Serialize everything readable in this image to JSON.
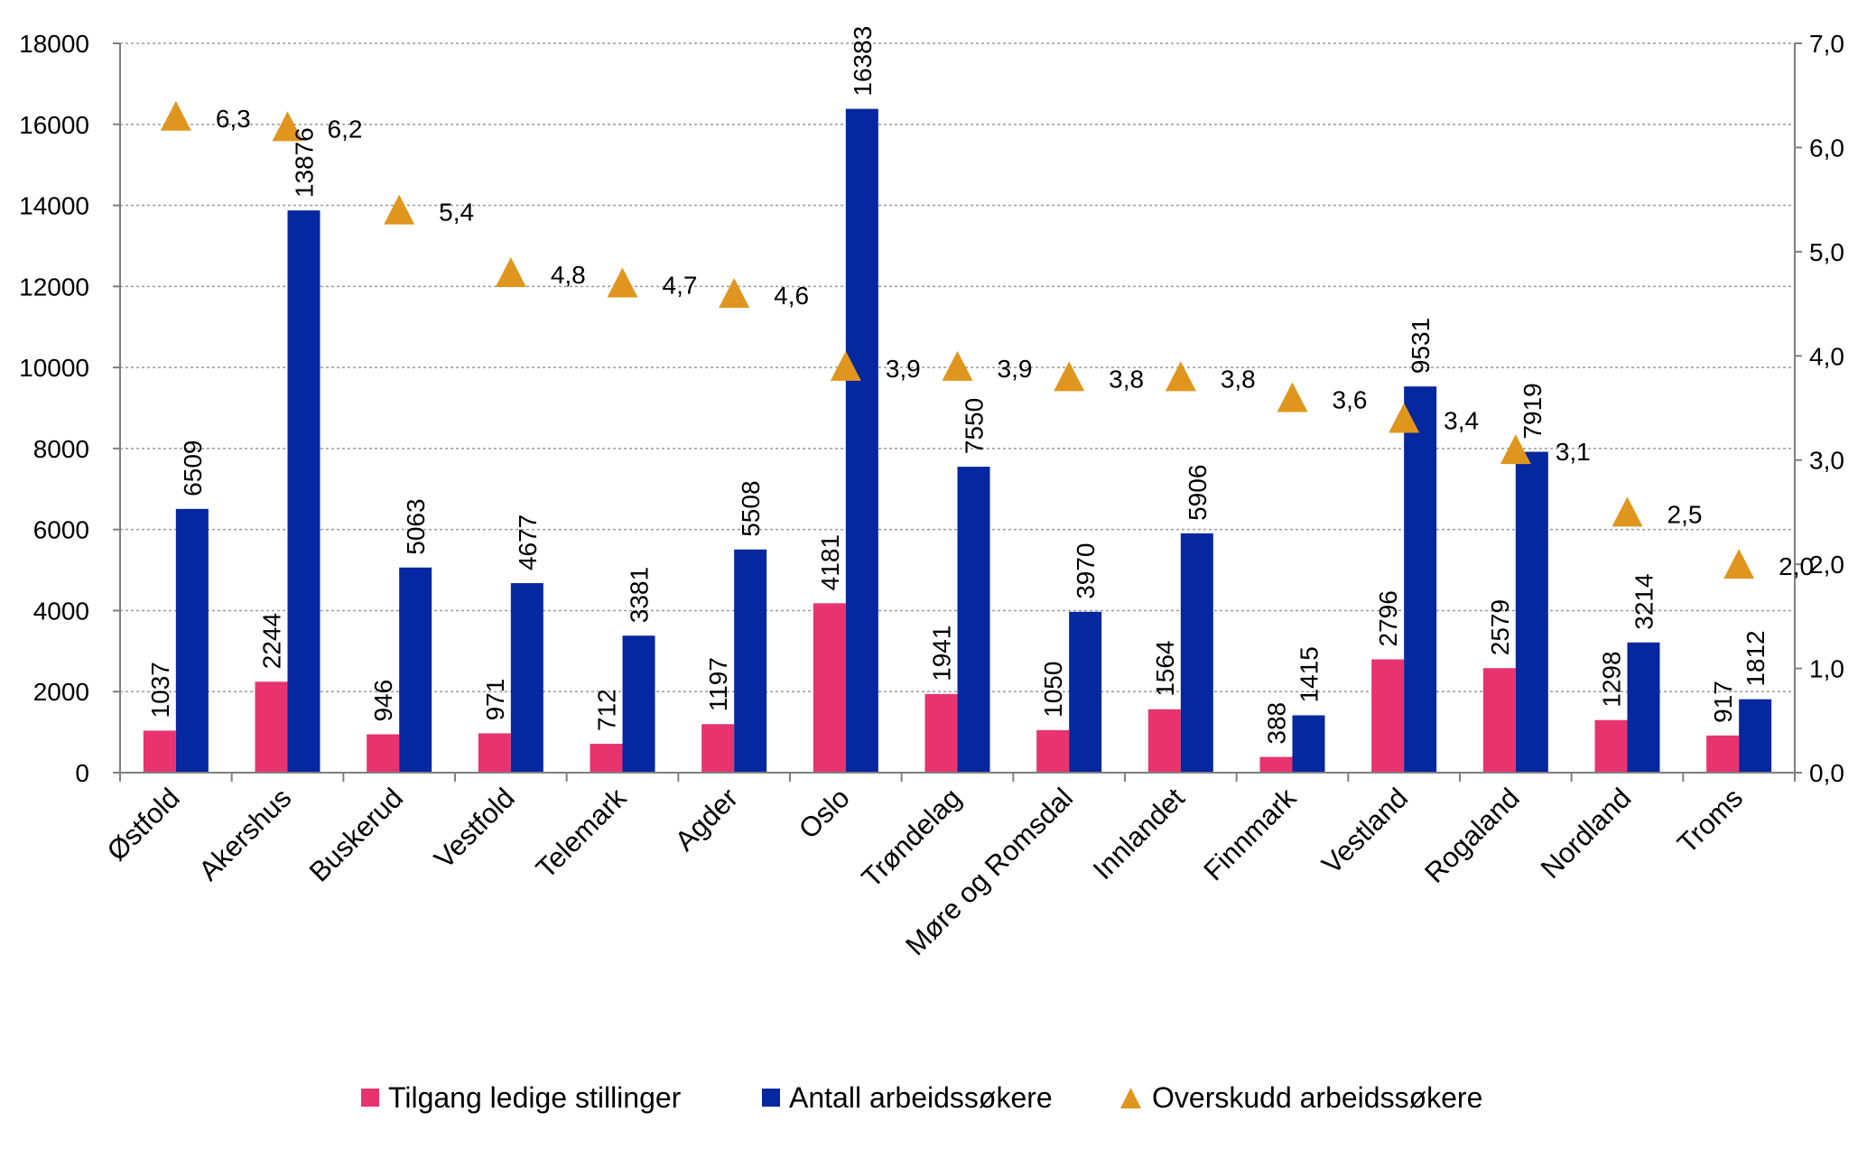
{
  "chart_data": {
    "type": "bar",
    "categories": [
      "Østfold",
      "Akershus",
      "Buskerud",
      "Vestfold",
      "Telemark",
      "Agder",
      "Oslo",
      "Trøndelag",
      "Møre og Romsdal",
      "Innlandet",
      "Finnmark",
      "Vestland",
      "Rogaland",
      "Nordland",
      "Troms"
    ],
    "series": [
      {
        "name": "Tilgang ledige stillinger",
        "type": "bar",
        "axis": "left",
        "color": "#E8336F",
        "values": [
          1037,
          2244,
          946,
          971,
          712,
          1197,
          4181,
          1941,
          1050,
          1564,
          388,
          2796,
          2579,
          1298,
          917
        ],
        "labels": [
          "1037",
          "2244",
          "946",
          "971",
          "712",
          "1197",
          "4181",
          "1941",
          "1050",
          "1564",
          "388",
          "2796",
          "2579",
          "1298",
          "917"
        ]
      },
      {
        "name": "Antall arbeidssøkere",
        "type": "bar",
        "axis": "left",
        "color": "#0527A0",
        "values": [
          6509,
          13876,
          5063,
          4677,
          3381,
          5508,
          16383,
          7550,
          3970,
          5906,
          1415,
          9531,
          7919,
          3214,
          1812
        ],
        "labels": [
          "6509",
          "13876",
          "5063",
          "4677",
          "3381",
          "5508",
          "16383",
          "7550",
          "3970",
          "5906",
          "1415",
          "9531",
          "7919",
          "3214",
          "1812"
        ]
      },
      {
        "name": "Overskudd arbeidssøkere",
        "type": "scatter",
        "marker": "triangle",
        "axis": "right",
        "color": "#E0961E",
        "values": [
          6.3,
          6.2,
          5.4,
          4.8,
          4.7,
          4.6,
          3.9,
          3.9,
          3.8,
          3.8,
          3.6,
          3.4,
          3.1,
          2.5,
          2.0
        ],
        "labels": [
          "6,3",
          "6,2",
          "5,4",
          "4,8",
          "4,7",
          "4,6",
          "3,9",
          "3,9",
          "3,8",
          "3,8",
          "3,6",
          "3,4",
          "3,1",
          "2,5",
          "2,0"
        ]
      }
    ],
    "left_axis": {
      "min": 0,
      "max": 18000,
      "ticks": [
        "0",
        "2000",
        "4000",
        "6000",
        "8000",
        "10000",
        "12000",
        "14000",
        "16000",
        "18000"
      ]
    },
    "right_axis": {
      "min": 0,
      "max": 7,
      "ticks": [
        "0,0",
        "1,0",
        "2,0",
        "3,0",
        "4,0",
        "5,0",
        "6,0",
        "7,0"
      ]
    },
    "grid": true,
    "legend_position": "bottom"
  }
}
